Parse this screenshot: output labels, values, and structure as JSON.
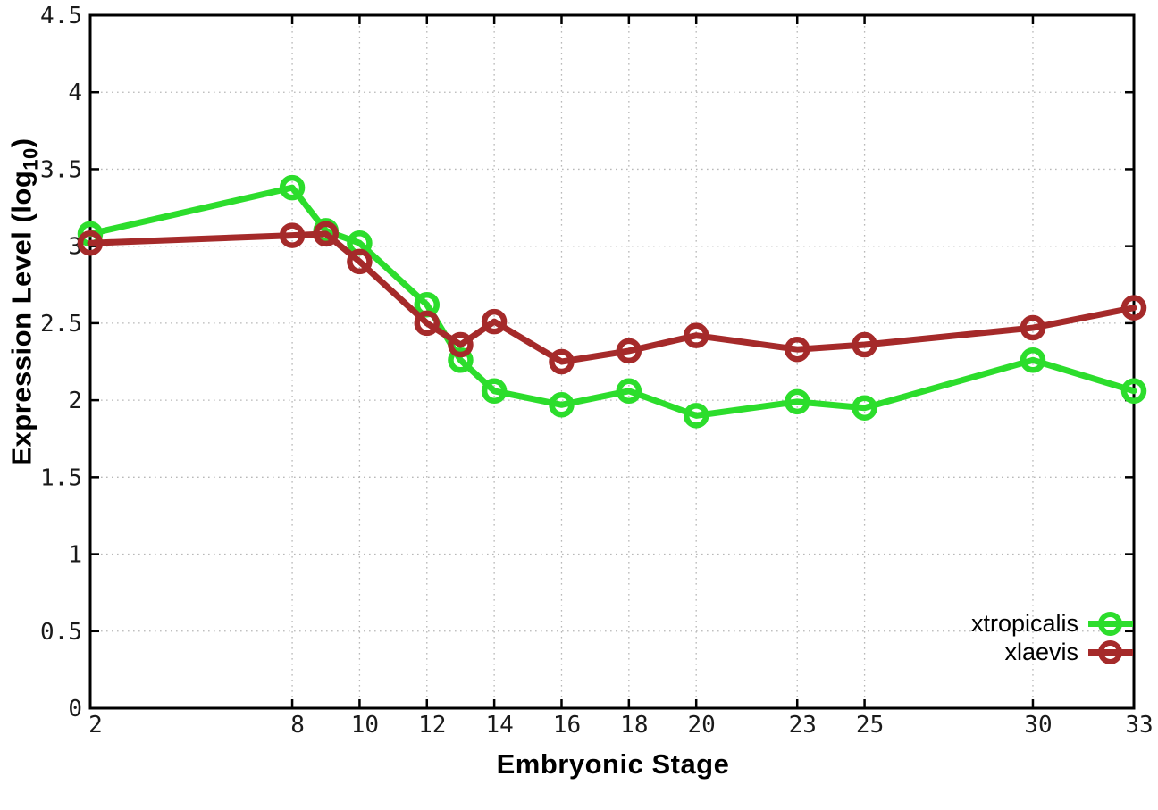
{
  "figure": {
    "background": "#ffffff",
    "xlabel": "Embryonic Stage",
    "ylabel_parts": {
      "prefix": "Expression Level (log",
      "sub": "10",
      "suffix": ")"
    }
  },
  "chart_data": {
    "type": "line",
    "title": "",
    "xlabel": "Embryonic Stage",
    "ylabel": "Expression Level (log10)",
    "x": [
      2,
      8,
      9,
      10,
      12,
      13,
      14,
      16,
      18,
      20,
      23,
      25,
      30,
      33
    ],
    "series": [
      {
        "name": "xtropicalis",
        "color": "#2cdd2c",
        "marker": "open-circle",
        "values": [
          3.08,
          3.38,
          3.1,
          3.02,
          2.62,
          2.26,
          2.06,
          1.97,
          2.06,
          1.9,
          1.99,
          1.95,
          2.26,
          2.06
        ]
      },
      {
        "name": "xlaevis",
        "color": "#a52a2a",
        "marker": "open-circle",
        "values": [
          3.02,
          3.07,
          3.08,
          2.9,
          2.5,
          2.36,
          2.51,
          2.25,
          2.32,
          2.42,
          2.33,
          2.36,
          2.47,
          2.6
        ]
      }
    ],
    "xlim": [
      2,
      33
    ],
    "ylim": [
      0,
      4.5
    ],
    "xticks": [
      2,
      8,
      10,
      12,
      14,
      16,
      18,
      20,
      23,
      25,
      30,
      33
    ],
    "yticks": [
      0,
      0.5,
      1,
      1.5,
      2,
      2.5,
      3,
      3.5,
      4,
      4.5
    ],
    "grid": true,
    "grid_style": "dotted",
    "grid_color": "#b8b8b8",
    "border_color": "#000000",
    "tick_label_color": "#1a1a1a",
    "legend_position": "bottom-right-inside"
  }
}
